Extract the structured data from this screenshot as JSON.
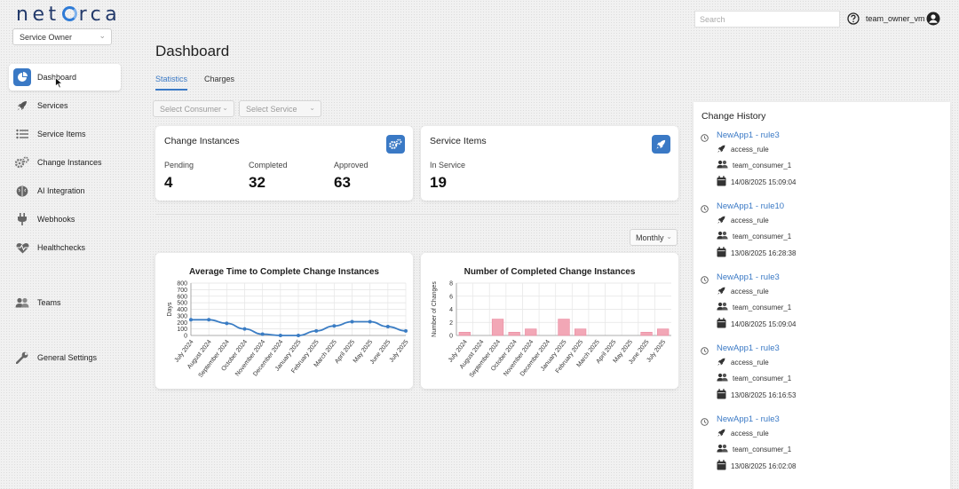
{
  "app": {
    "logo_text": [
      "net",
      "rca"
    ],
    "role": "Service Owner"
  },
  "header": {
    "search_placeholder": "Search",
    "user": "team_owner_vm",
    "icons": [
      "help-icon",
      "user-circle-icon"
    ]
  },
  "sidebar": {
    "items": [
      {
        "label": "Dashboard",
        "icon": "pie-chart-icon",
        "active": true
      },
      {
        "label": "Services",
        "icon": "rocket-icon"
      },
      {
        "label": "Service Items",
        "icon": "list-icon"
      },
      {
        "label": "Change Instances",
        "icon": "gears-icon"
      },
      {
        "label": "AI Integration",
        "icon": "brain-icon"
      },
      {
        "label": "Webhooks",
        "icon": "plug-icon"
      },
      {
        "label": "Healthchecks",
        "icon": "heartbeat-icon"
      },
      {
        "label": "Teams",
        "icon": "users-icon"
      },
      {
        "label": "General Settings",
        "icon": "wrench-icon"
      }
    ]
  },
  "main": {
    "title": "Dashboard",
    "tabs": [
      {
        "label": "Statistics",
        "active": true
      },
      {
        "label": "Charges"
      }
    ],
    "filters": {
      "consumer_placeholder": "Select Consumer",
      "service_placeholder": "Select Service"
    },
    "period": "Monthly",
    "change_instances": {
      "title": "Change Instances",
      "icon": "gears-icon",
      "stats": [
        {
          "label": "Pending",
          "value": "4"
        },
        {
          "label": "Completed",
          "value": "32"
        },
        {
          "label": "Approved",
          "value": "63"
        }
      ]
    },
    "service_items": {
      "title": "Service Items",
      "icon": "rocket-icon",
      "stats": [
        {
          "label": "In Service",
          "value": "19"
        }
      ]
    }
  },
  "chart_data": [
    {
      "type": "line",
      "title": "Average Time to Complete Change Instances",
      "ylabel": "Days",
      "xlabel": "",
      "categories": [
        "July 2024",
        "August 2024",
        "September 2024",
        "October 2024",
        "November 2024",
        "December 2024",
        "January 2025",
        "February 2025",
        "March 2025",
        "April 2025",
        "May 2025",
        "June 2025",
        "July 2025"
      ],
      "values": [
        240,
        240,
        185,
        100,
        20,
        0,
        0,
        70,
        145,
        210,
        210,
        135,
        70
      ],
      "yticks": [
        0,
        100,
        200,
        300,
        400,
        500,
        600,
        700,
        800
      ],
      "ylim": [
        0,
        800
      ],
      "grid": true,
      "color": "#3b7dc4"
    },
    {
      "type": "bar",
      "title": "Number of Completed Change Instances",
      "ylabel": "Number of Changes",
      "xlabel": "",
      "categories": [
        "July 2024",
        "August 2024",
        "September 2024",
        "October 2024",
        "November 2024",
        "December 2024",
        "January 2025",
        "February 2025",
        "March 2025",
        "April 2025",
        "May 2025",
        "June 2025",
        "July 2025"
      ],
      "values": [
        0.5,
        0,
        2.5,
        0.5,
        1,
        0,
        2.5,
        1,
        0,
        0,
        0,
        0.5,
        1
      ],
      "yticks": [
        0,
        2,
        4,
        6,
        8
      ],
      "ylim": [
        0,
        8
      ],
      "grid": true,
      "color": "#f2a7b6"
    }
  ],
  "history": {
    "title": "Change History",
    "entries": [
      {
        "name": "NewApp1 - rule3",
        "service": "access_rule",
        "team": "team_consumer_1",
        "date": "14/08/2025 15:09:04"
      },
      {
        "name": "NewApp1 - rule10",
        "service": "access_rule",
        "team": "team_consumer_1",
        "date": "13/08/2025 16:28:38"
      },
      {
        "name": "NewApp1 - rule3",
        "service": "access_rule",
        "team": "team_consumer_1",
        "date": "14/08/2025 15:09:04"
      },
      {
        "name": "NewApp1 - rule3",
        "service": "access_rule",
        "team": "team_consumer_1",
        "date": "13/08/2025 16:16:53"
      },
      {
        "name": "NewApp1 - rule3",
        "service": "access_rule",
        "team": "team_consumer_1",
        "date": "13/08/2025 16:02:08"
      }
    ]
  }
}
